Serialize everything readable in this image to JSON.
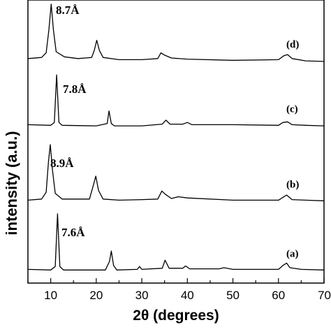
{
  "chart_data": {
    "type": "line",
    "xlabel": "2θ (degrees)",
    "ylabel": "intensity (a.u.)",
    "xlim": [
      5,
      70
    ],
    "xticks": [
      10,
      20,
      30,
      40,
      50,
      60,
      70
    ],
    "series": [
      {
        "name": "(d)",
        "peak_label": "8.7Å",
        "baseline": 0.5,
        "points": [
          [
            5,
            1.0
          ],
          [
            8,
            1.2
          ],
          [
            9,
            2.0
          ],
          [
            9.6,
            6.0
          ],
          [
            10.1,
            10.5
          ],
          [
            10.6,
            6.0
          ],
          [
            11.2,
            2.2
          ],
          [
            13,
            1.3
          ],
          [
            16,
            1.0
          ],
          [
            19,
            1.2
          ],
          [
            19.6,
            2.5
          ],
          [
            20.1,
            4.2
          ],
          [
            20.7,
            2.4
          ],
          [
            21.5,
            1.2
          ],
          [
            25,
            0.8
          ],
          [
            30,
            0.8
          ],
          [
            33.5,
            1.0
          ],
          [
            34.2,
            2.0
          ],
          [
            35,
            1.6
          ],
          [
            36.5,
            1.1
          ],
          [
            40,
            0.9
          ],
          [
            50,
            0.7
          ],
          [
            60,
            0.8
          ],
          [
            61.2,
            1.5
          ],
          [
            62,
            1.7
          ],
          [
            63,
            1.0
          ],
          [
            66,
            0.6
          ],
          [
            70,
            0.5
          ]
        ]
      },
      {
        "name": "(c)",
        "peak_label": "7.8Å",
        "baseline": 0.6,
        "points": [
          [
            5,
            0.8
          ],
          [
            10,
            0.7
          ],
          [
            10.8,
            1.2
          ],
          [
            11.3,
            9.5
          ],
          [
            11.8,
            1.2
          ],
          [
            12.5,
            0.7
          ],
          [
            20,
            0.6
          ],
          [
            22.4,
            1.0
          ],
          [
            22.8,
            3.2
          ],
          [
            23.3,
            1.0
          ],
          [
            24,
            0.6
          ],
          [
            30,
            0.6
          ],
          [
            34.5,
            0.9
          ],
          [
            35.3,
            1.6
          ],
          [
            36.2,
            0.9
          ],
          [
            39,
            0.9
          ],
          [
            40,
            1.2
          ],
          [
            41,
            0.8
          ],
          [
            50,
            0.8
          ],
          [
            60,
            0.7
          ],
          [
            61,
            1.2
          ],
          [
            62,
            1.3
          ],
          [
            63,
            0.8
          ],
          [
            66,
            0.7
          ],
          [
            70,
            0.6
          ]
        ]
      },
      {
        "name": "(b)",
        "peak_label": "8.9Å",
        "baseline": 0.6,
        "points": [
          [
            5,
            0.8
          ],
          [
            8,
            1.0
          ],
          [
            9,
            2.2
          ],
          [
            9.5,
            7.5
          ],
          [
            9.9,
            10.5
          ],
          [
            10.4,
            6.0
          ],
          [
            11,
            2.0
          ],
          [
            12.5,
            1.0
          ],
          [
            18.5,
            1.0
          ],
          [
            19.4,
            3.5
          ],
          [
            19.9,
            5.0
          ],
          [
            20.5,
            2.5
          ],
          [
            21.5,
            1.0
          ],
          [
            25,
            0.8
          ],
          [
            30,
            0.9
          ],
          [
            33.5,
            1.0
          ],
          [
            34.4,
            2.4
          ],
          [
            35.2,
            1.8
          ],
          [
            36.5,
            1.1
          ],
          [
            38,
            1.4
          ],
          [
            40,
            1.2
          ],
          [
            50,
            0.8
          ],
          [
            60,
            0.8
          ],
          [
            61,
            1.3
          ],
          [
            61.8,
            1.7
          ],
          [
            63,
            0.9
          ],
          [
            66,
            0.8
          ],
          [
            70,
            0.7
          ]
        ]
      },
      {
        "name": "(a)",
        "peak_label": "7.6Å",
        "baseline": 0.6,
        "points": [
          [
            5,
            0.8
          ],
          [
            10,
            0.7
          ],
          [
            11,
            1.3
          ],
          [
            11.5,
            10.5
          ],
          [
            12,
            1.3
          ],
          [
            12.8,
            0.7
          ],
          [
            22,
            0.7
          ],
          [
            22.9,
            2.2
          ],
          [
            23.3,
            4.0
          ],
          [
            23.8,
            1.5
          ],
          [
            24.5,
            0.7
          ],
          [
            29,
            0.8
          ],
          [
            29.5,
            1.3
          ],
          [
            30,
            0.8
          ],
          [
            34.5,
            1.0
          ],
          [
            35.1,
            2.4
          ],
          [
            36,
            1.0
          ],
          [
            39,
            1.0
          ],
          [
            39.6,
            1.4
          ],
          [
            40.5,
            0.9
          ],
          [
            47,
            0.9
          ],
          [
            48,
            1.1
          ],
          [
            50,
            0.8
          ],
          [
            60,
            0.8
          ],
          [
            61,
            1.5
          ],
          [
            61.8,
            1.9
          ],
          [
            62.5,
            1.1
          ],
          [
            65,
            0.8
          ],
          [
            70,
            0.7
          ]
        ]
      }
    ]
  }
}
